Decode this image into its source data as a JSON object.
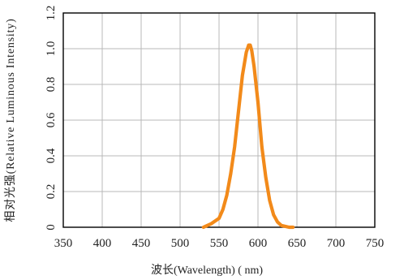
{
  "chart_data": {
    "type": "line",
    "xlabel": "波长(Wavelength) ( nm)",
    "ylabel": "相对光强(Relative Luminous Intensity)",
    "xlim": [
      350,
      750
    ],
    "ylim": [
      0,
      1.2
    ],
    "x_ticks": [
      350,
      400,
      450,
      500,
      550,
      600,
      650,
      700,
      750
    ],
    "x_tick_labels": [
      "350",
      "400",
      "450",
      "500",
      "550",
      "600",
      "650",
      "700",
      "750"
    ],
    "y_ticks": [
      0,
      0.2,
      0.4,
      0.6,
      0.8,
      1.0,
      1.2
    ],
    "y_tick_labels": [
      "0",
      "0.2",
      "0.4",
      "0.6",
      "0.8",
      "1.0",
      "1.2"
    ],
    "grid": true,
    "series": [
      {
        "color": "#f28a1a",
        "x": [
          530,
          540,
          550,
          555,
          560,
          565,
          570,
          575,
          580,
          585,
          588,
          590,
          592,
          595,
          600,
          605,
          610,
          615,
          620,
          625,
          630,
          640,
          645
        ],
        "y": [
          0.0,
          0.02,
          0.05,
          0.1,
          0.18,
          0.3,
          0.45,
          0.65,
          0.85,
          0.98,
          1.02,
          1.02,
          0.99,
          0.9,
          0.7,
          0.45,
          0.28,
          0.15,
          0.07,
          0.03,
          0.01,
          0.0,
          0.0
        ]
      }
    ]
  }
}
